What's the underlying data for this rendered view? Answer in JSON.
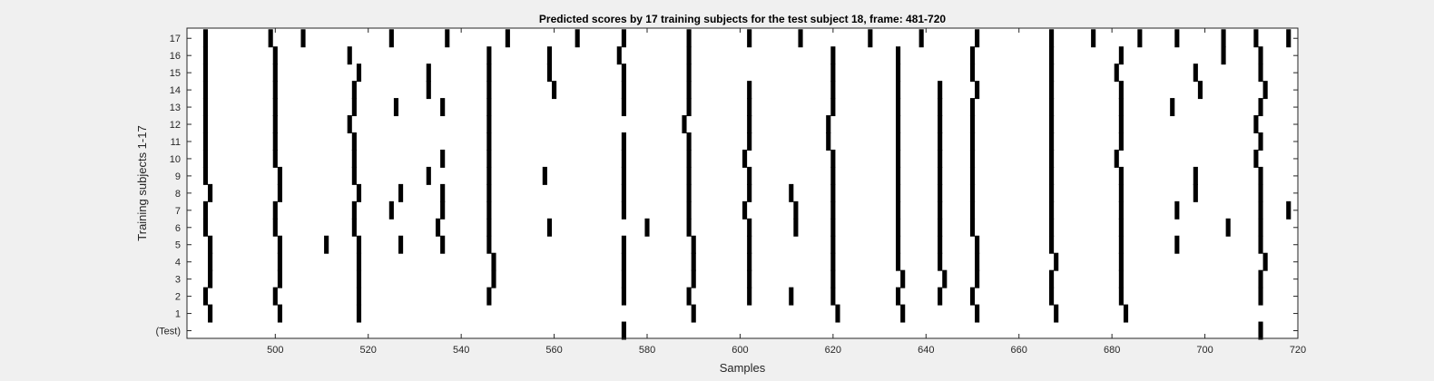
{
  "chart_data": {
    "type": "scatter",
    "marker": "vertical-bar",
    "title": "Predicted scores by 17 training subjects for the test subject 18, frame: 481-720",
    "xlabel": "Samples",
    "ylabel": "Training subjects 1-17",
    "xlim": [
      481,
      720
    ],
    "x_ticks": [
      500,
      520,
      540,
      560,
      580,
      600,
      620,
      640,
      660,
      680,
      700,
      720
    ],
    "y_tick_labels": [
      "(Test)",
      "1",
      "2",
      "3",
      "4",
      "5",
      "6",
      "7",
      "8",
      "9",
      "10",
      "11",
      "12",
      "13",
      "14",
      "15",
      "16",
      "17"
    ],
    "grid": false,
    "colors": {
      "marker": "#000000",
      "background": "#ffffff",
      "figure": "#f0f0f0",
      "axis": "#262626"
    },
    "series": [
      {
        "row": "(Test)",
        "x": [
          575,
          712
        ]
      },
      {
        "row": "1",
        "x": [
          486,
          501,
          518,
          590,
          621,
          635,
          651,
          668,
          683
        ]
      },
      {
        "row": "2",
        "x": [
          485,
          500,
          518,
          546,
          575,
          589,
          602,
          611,
          620,
          634,
          643,
          650,
          667,
          682,
          712
        ]
      },
      {
        "row": "3",
        "x": [
          486,
          501,
          518,
          547,
          575,
          590,
          602,
          620,
          635,
          644,
          651,
          667,
          682,
          712
        ]
      },
      {
        "row": "4",
        "x": [
          486,
          501,
          518,
          547,
          575,
          590,
          602,
          620,
          634,
          643,
          651,
          668,
          682,
          713
        ]
      },
      {
        "row": "5",
        "x": [
          486,
          501,
          511,
          518,
          527,
          536,
          546,
          575,
          590,
          602,
          620,
          634,
          643,
          651,
          667,
          682,
          694,
          712
        ]
      },
      {
        "row": "6",
        "x": [
          485,
          500,
          517,
          535,
          546,
          559,
          580,
          589,
          602,
          612,
          620,
          634,
          643,
          650,
          667,
          682,
          705,
          712
        ]
      },
      {
        "row": "7",
        "x": [
          485,
          500,
          517,
          525,
          536,
          546,
          575,
          589,
          601,
          612,
          620,
          634,
          643,
          650,
          667,
          682,
          694,
          712,
          718
        ]
      },
      {
        "row": "8",
        "x": [
          486,
          501,
          518,
          527,
          536,
          546,
          575,
          589,
          602,
          611,
          620,
          634,
          643,
          650,
          667,
          682,
          698,
          712
        ]
      },
      {
        "row": "9",
        "x": [
          485,
          501,
          517,
          533,
          546,
          558,
          575,
          589,
          602,
          620,
          634,
          643,
          650,
          667,
          682,
          698,
          712
        ]
      },
      {
        "row": "10",
        "x": [
          485,
          500,
          517,
          536,
          546,
          575,
          589,
          601,
          620,
          634,
          643,
          650,
          667,
          681,
          711
        ]
      },
      {
        "row": "11",
        "x": [
          485,
          500,
          517,
          546,
          575,
          589,
          602,
          619,
          634,
          643,
          650,
          667,
          682,
          712
        ]
      },
      {
        "row": "12",
        "x": [
          485,
          500,
          516,
          546,
          588,
          602,
          619,
          634,
          643,
          650,
          667,
          682,
          711
        ]
      },
      {
        "row": "13",
        "x": [
          485,
          500,
          517,
          526,
          536,
          546,
          575,
          589,
          602,
          620,
          634,
          643,
          650,
          667,
          682,
          693,
          712
        ]
      },
      {
        "row": "14",
        "x": [
          485,
          500,
          517,
          533,
          546,
          560,
          575,
          589,
          602,
          620,
          634,
          643,
          651,
          667,
          682,
          699,
          713
        ]
      },
      {
        "row": "15",
        "x": [
          485,
          500,
          518,
          533,
          546,
          559,
          575,
          589,
          620,
          634,
          650,
          667,
          681,
          698,
          712
        ]
      },
      {
        "row": "16",
        "x": [
          485,
          500,
          516,
          546,
          559,
          574,
          589,
          620,
          634,
          650,
          667,
          682,
          704,
          712
        ]
      },
      {
        "row": "17",
        "x": [
          485,
          499,
          506,
          525,
          537,
          550,
          565,
          575,
          589,
          602,
          613,
          628,
          639,
          651,
          667,
          676,
          686,
          694,
          704,
          711,
          718
        ]
      }
    ]
  }
}
